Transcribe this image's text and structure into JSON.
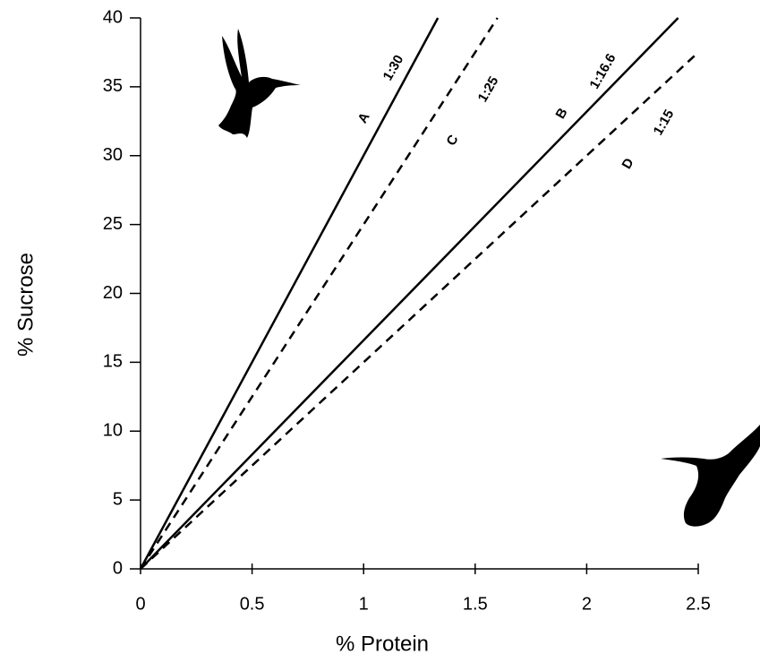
{
  "chart_data": {
    "type": "line",
    "x_label": "% Protein",
    "y_label": "% Sucrose",
    "xlim": [
      0,
      2.5
    ],
    "xticks": [
      0,
      0.5,
      1,
      1.5,
      2,
      2.5
    ],
    "ylim": [
      0,
      40
    ],
    "yticks": [
      0,
      5,
      10,
      15,
      20,
      25,
      30,
      35,
      40
    ],
    "series": [
      {
        "name": "A",
        "label": "1:30",
        "style": "solid",
        "color": "#000000",
        "x": [
          0,
          1.333
        ],
        "values": [
          0,
          40
        ]
      },
      {
        "name": "C",
        "label": "1:25",
        "style": "dashed",
        "color": "#000000",
        "x": [
          0,
          1.6
        ],
        "values": [
          0,
          40
        ]
      },
      {
        "name": "B",
        "label": "1:16.6",
        "style": "solid",
        "color": "#000000",
        "x": [
          0,
          2.41
        ],
        "values": [
          0,
          40
        ]
      },
      {
        "name": "D",
        "label": "1:15",
        "style": "dashed",
        "color": "#000000",
        "x": [
          0,
          2.5
        ],
        "values": [
          0,
          37.5
        ]
      }
    ]
  }
}
